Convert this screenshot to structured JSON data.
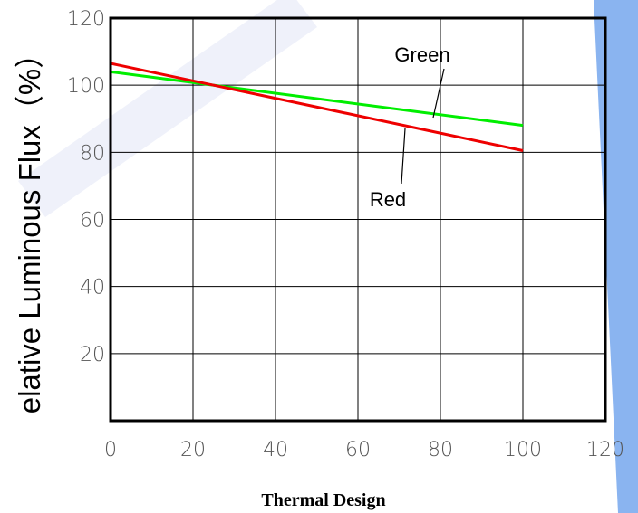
{
  "chart_data": {
    "type": "line",
    "title": "",
    "ylabel": "elative Luminous  Flux（%）",
    "xlabel": "Thermal Design",
    "xlim": [
      0,
      120
    ],
    "ylim": [
      0,
      120
    ],
    "x_ticks": [
      "0",
      "20",
      "40",
      "60",
      "80",
      "100",
      "120"
    ],
    "y_ticks": [
      "20",
      "40",
      "60",
      "80",
      "100",
      "120"
    ],
    "grid": true,
    "series": [
      {
        "name": "Green",
        "color": "#00ee00",
        "x": [
          0,
          100
        ],
        "y": [
          104,
          88
        ]
      },
      {
        "name": "Red",
        "color": "#ee0000",
        "x": [
          0,
          100
        ],
        "y": [
          106.5,
          80.5
        ]
      }
    ]
  },
  "decoration": {
    "watermark_color": "#e4e8f6",
    "side_band_color": "#8ab4f0"
  }
}
